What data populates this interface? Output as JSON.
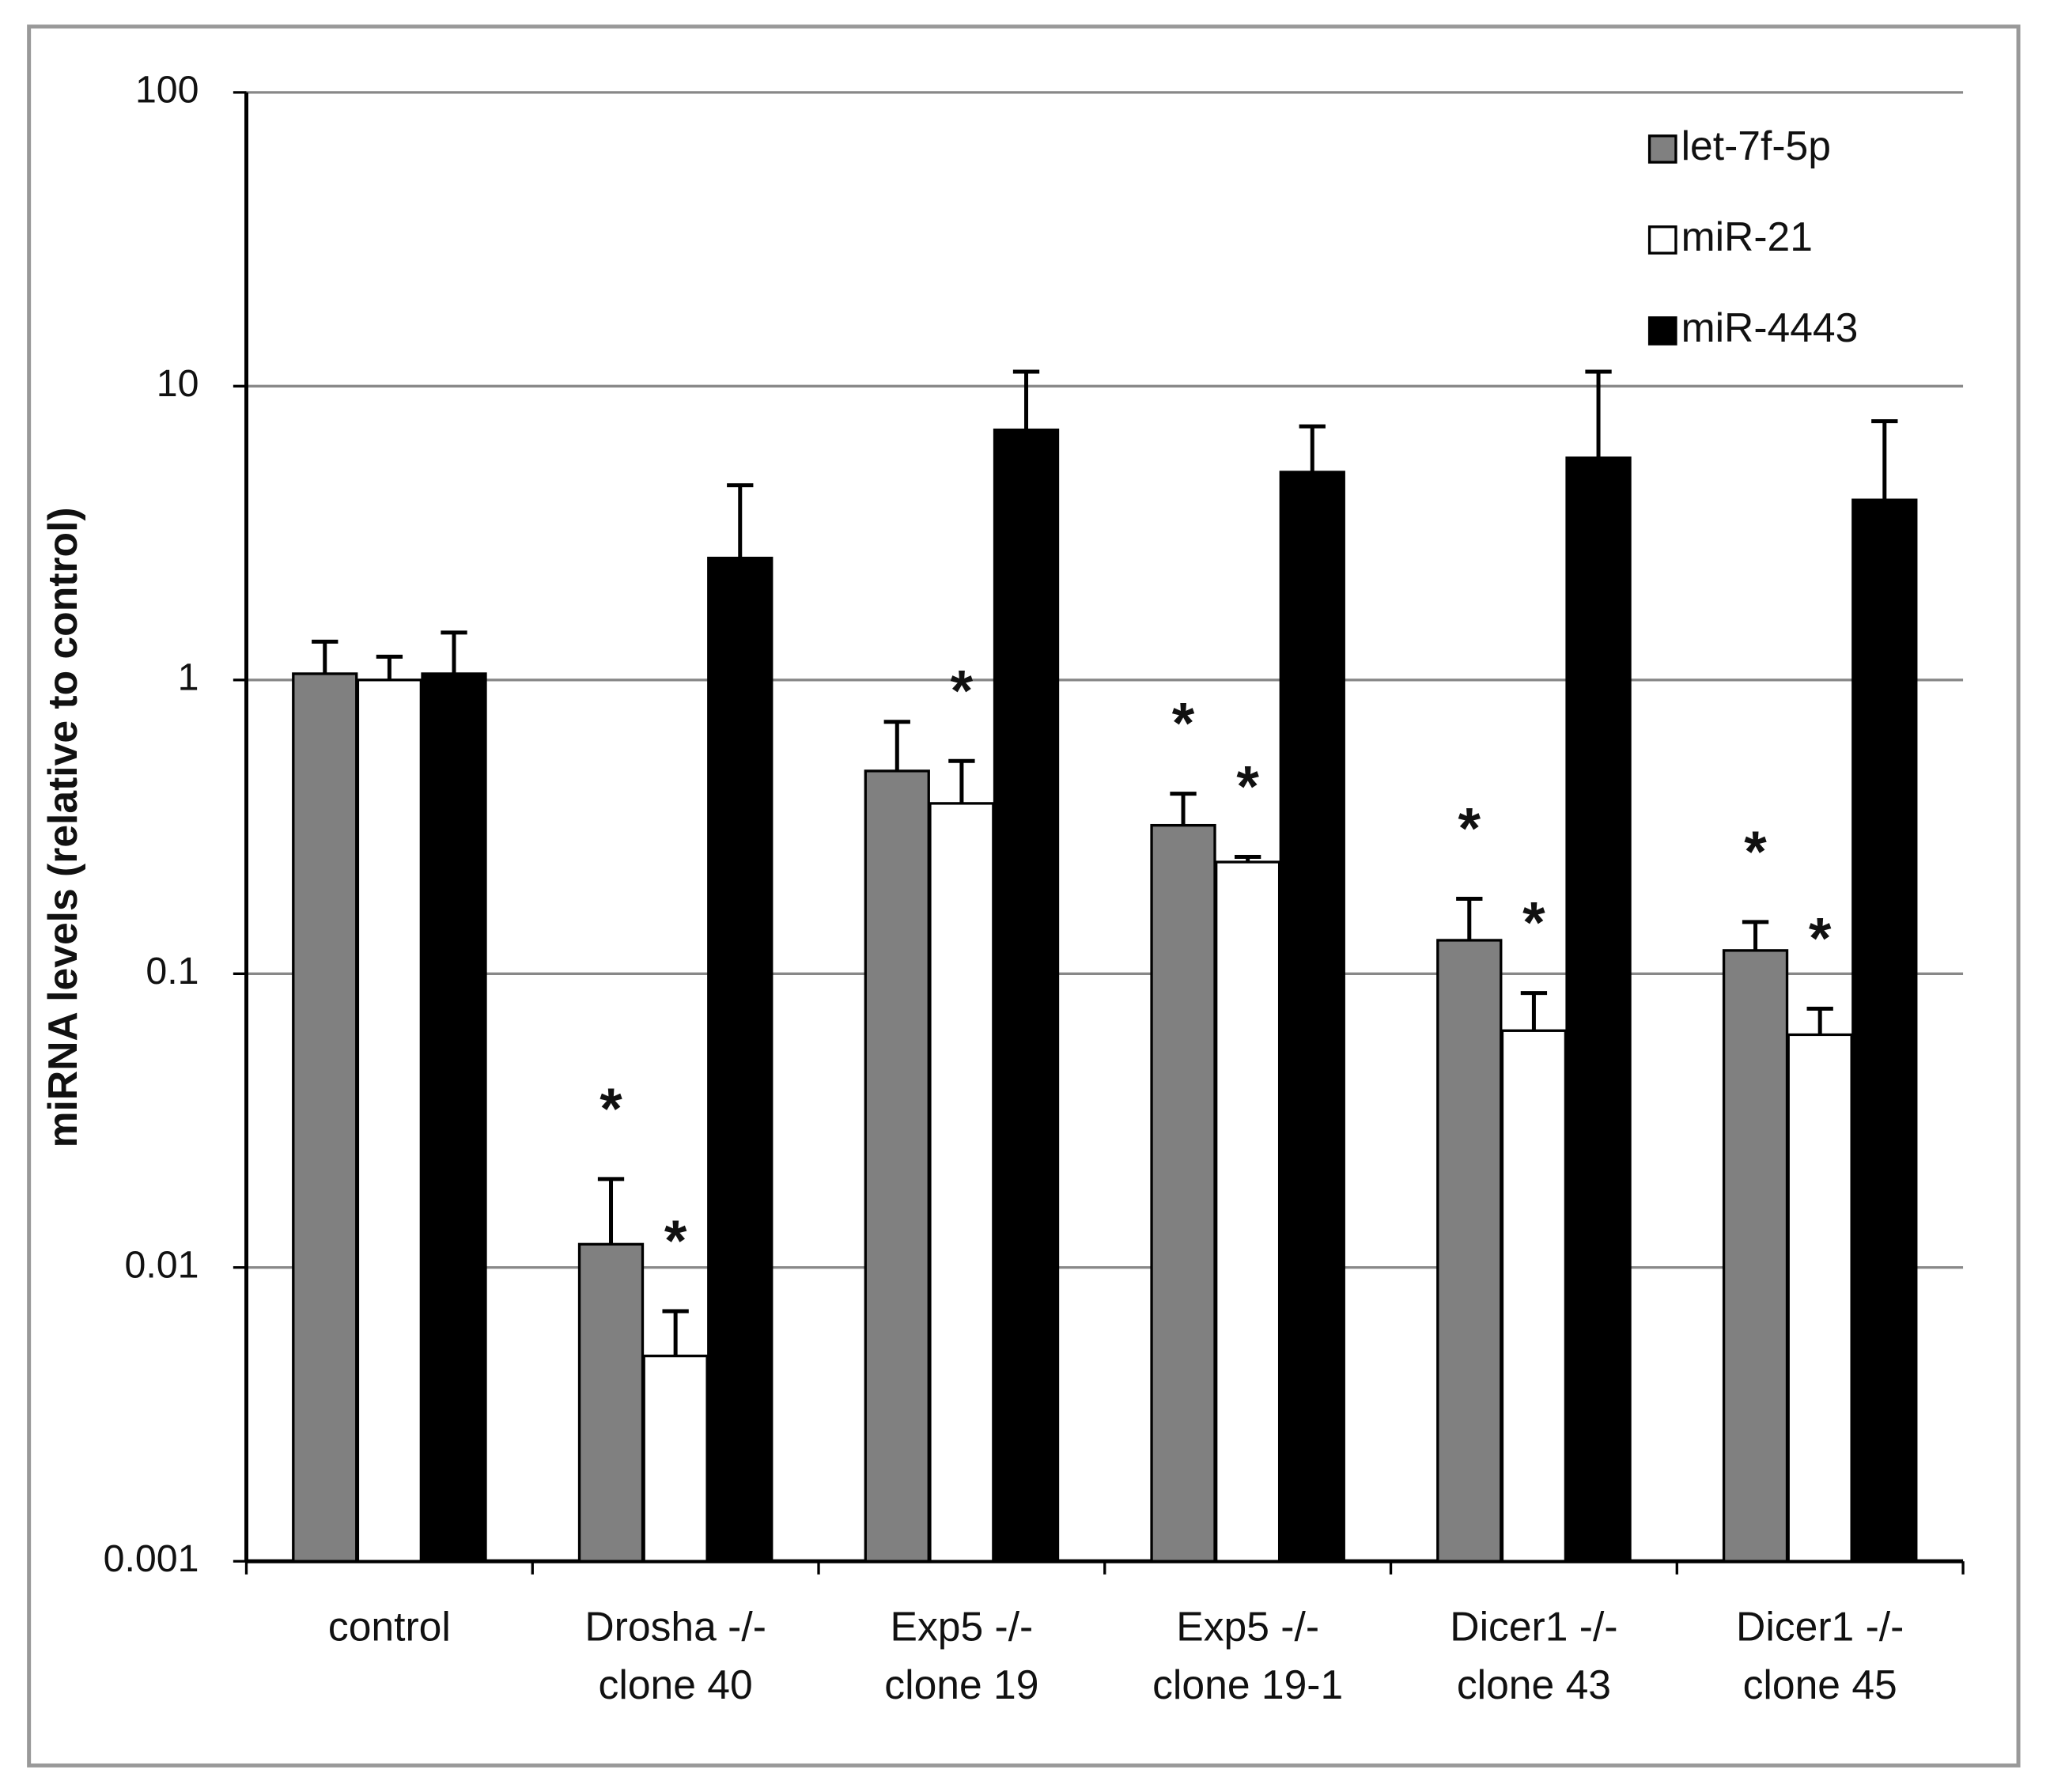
{
  "chart_data": {
    "type": "bar",
    "y_label": "miRNA levels (relative to control)",
    "log_scale": true,
    "grid": true,
    "legend_position": "upper right",
    "ylim": [
      0.001,
      100
    ],
    "yticks": [
      0.001,
      0.01,
      0.1,
      1,
      10,
      100
    ],
    "categories": [
      [
        "control"
      ],
      [
        "Drosha -/-",
        "clone 40"
      ],
      [
        "Exp5 -/-",
        "clone 19"
      ],
      [
        "Exp5 -/-",
        "clone 19-1"
      ],
      [
        "Dicer1 -/-",
        "clone 43"
      ],
      [
        "Dicer1 -/-",
        "clone 45"
      ]
    ],
    "series": [
      {
        "name": "let-7f-5p",
        "color": "#808080",
        "values": [
          1.05,
          0.012,
          0.49,
          0.32,
          0.13,
          0.12
        ],
        "errors": [
          0.3,
          0.008,
          0.23,
          0.09,
          0.05,
          0.03
        ]
      },
      {
        "name": "miR-21",
        "color": "#ffffff",
        "values": [
          1.0,
          0.005,
          0.38,
          0.24,
          0.064,
          0.062
        ],
        "errors": [
          0.2,
          0.0021,
          0.15,
          0.01,
          0.022,
          0.014
        ]
      },
      {
        "name": "miR-4443",
        "color": "#000000",
        "values": [
          1.05,
          2.6,
          7.1,
          5.1,
          5.7,
          4.1
        ],
        "errors": [
          0.4,
          2.0,
          4.1,
          2.2,
          5.5,
          3.5
        ]
      }
    ],
    "annotations": [
      {
        "text": "*",
        "category": 1,
        "series": 0
      },
      {
        "text": "*",
        "category": 1,
        "series": 1
      },
      {
        "text": "*",
        "category": 2,
        "series": 1
      },
      {
        "text": "*",
        "category": 3,
        "series": 0
      },
      {
        "text": "*",
        "category": 3,
        "series": 1
      },
      {
        "text": "*",
        "category": 4,
        "series": 0
      },
      {
        "text": "*",
        "category": 4,
        "series": 1
      },
      {
        "text": "*",
        "category": 5,
        "series": 0
      },
      {
        "text": "*",
        "category": 5,
        "series": 1
      }
    ]
  }
}
